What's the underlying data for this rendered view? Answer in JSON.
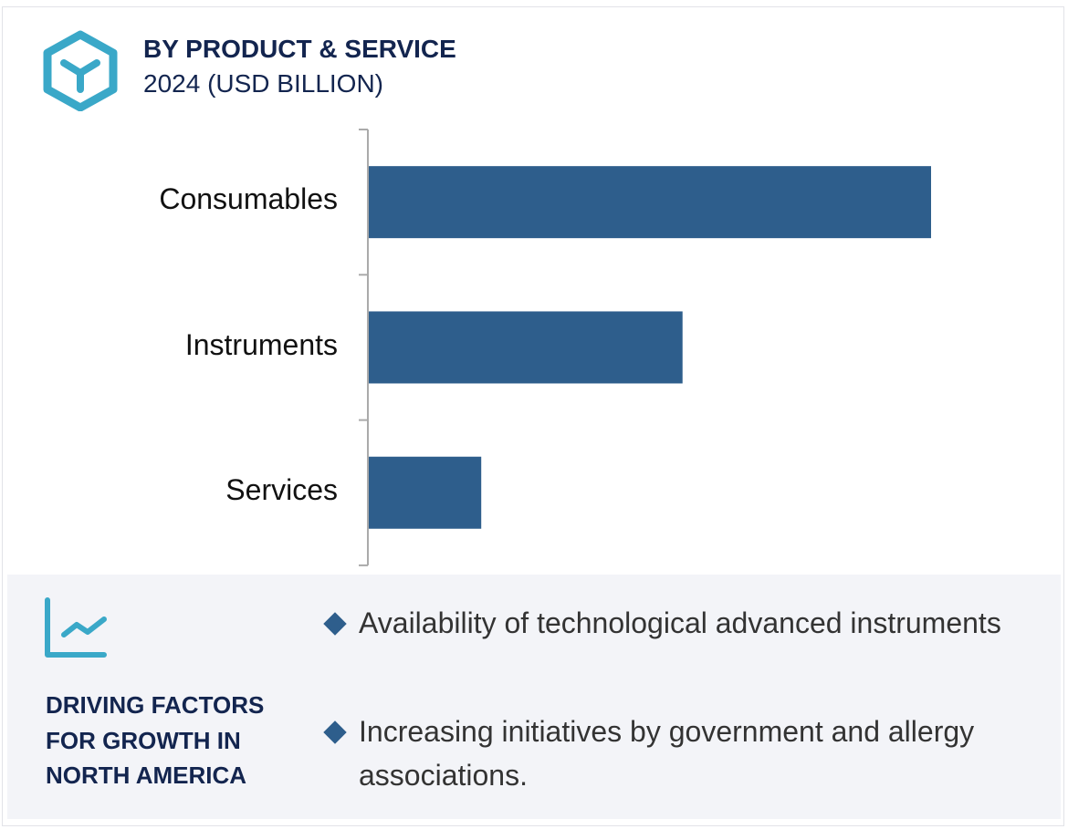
{
  "header": {
    "title": "BY PRODUCT & SERVICE",
    "subtitle": "2024 (USD BILLION)",
    "icon": "cube-icon"
  },
  "chart_data": {
    "type": "bar",
    "orientation": "horizontal",
    "categories": [
      "Consumables",
      "Instruments",
      "Services"
    ],
    "values": [
      100,
      55.8,
      20
    ],
    "value_note": "relative bar lengths (no axis values printed)",
    "xlim": [
      0,
      100
    ],
    "grid": false,
    "bar_color": "#2e5e8c"
  },
  "factors": {
    "icon": "line-chart-icon",
    "heading_lines": [
      "DRIVING FACTORS",
      "FOR GROWTH IN",
      "NORTH AMERICA"
    ],
    "bullets": [
      "Availability of technological advanced instruments",
      "Increasing initiatives by government and allergy associations."
    ]
  },
  "colors": {
    "accent": "#3aa8c8",
    "navy": "#13254f",
    "bar": "#2e5e8c",
    "panel": "#f3f4f8"
  }
}
